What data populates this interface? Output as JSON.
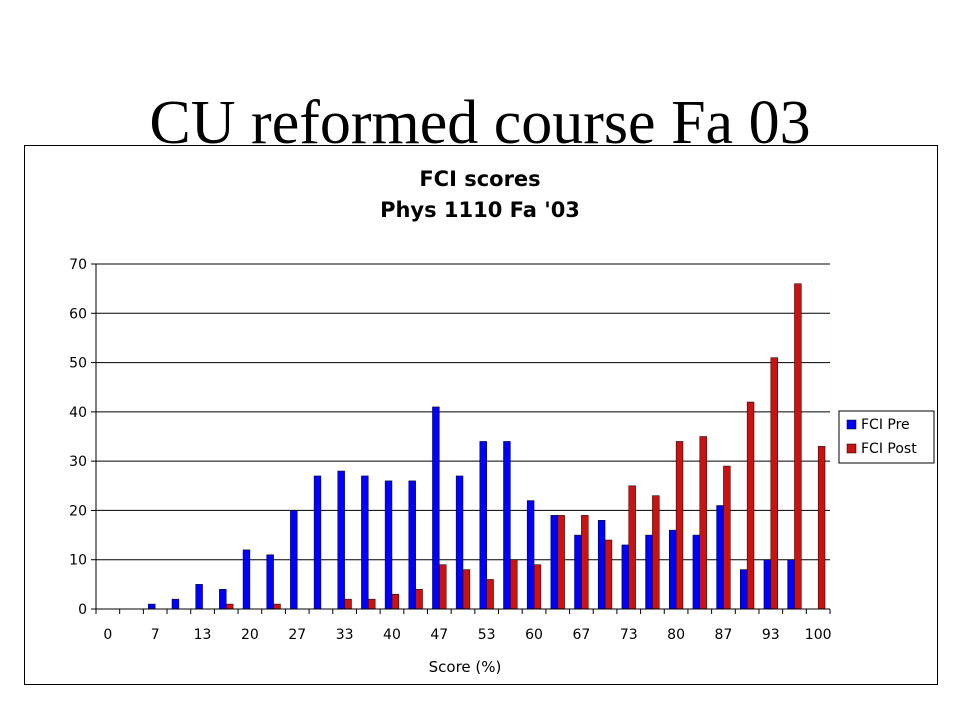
{
  "slide": {
    "title": "CU reformed course Fa 03"
  },
  "colors": {
    "pre": "#0000FF",
    "post": "#CC1111",
    "grid": "#000000"
  },
  "chart_data": {
    "type": "bar",
    "title": "FCI scores",
    "subtitle": "Phys 1110 Fa '03",
    "xlabel": "Score (%)",
    "ylabel": "",
    "ylim": [
      0,
      70
    ],
    "yticks": [
      0,
      10,
      20,
      30,
      40,
      50,
      60,
      70
    ],
    "grid": true,
    "legend_position": "right",
    "categories": [
      "0",
      "3",
      "7",
      "10",
      "13",
      "17",
      "20",
      "23",
      "27",
      "30",
      "33",
      "37",
      "40",
      "43",
      "47",
      "50",
      "53",
      "57",
      "60",
      "63",
      "67",
      "70",
      "73",
      "77",
      "80",
      "83",
      "87",
      "90",
      "93",
      "97",
      "100"
    ],
    "x_tick_labels": [
      "0",
      "7",
      "13",
      "20",
      "27",
      "33",
      "40",
      "47",
      "53",
      "60",
      "67",
      "73",
      "80",
      "87",
      "93",
      "100"
    ],
    "series": [
      {
        "name": "FCI Pre",
        "values": [
          0,
          0,
          1,
          2,
          5,
          4,
          12,
          11,
          20,
          27,
          28,
          27,
          26,
          26,
          41,
          27,
          34,
          34,
          22,
          19,
          15,
          18,
          13,
          15,
          16,
          15,
          21,
          8,
          10,
          10,
          0
        ]
      },
      {
        "name": "FCI Post",
        "values": [
          0,
          0,
          0,
          0,
          0,
          1,
          0,
          1,
          0,
          0,
          2,
          2,
          3,
          4,
          9,
          8,
          6,
          10,
          9,
          19,
          19,
          14,
          25,
          23,
          34,
          35,
          29,
          42,
          51,
          66,
          33
        ]
      }
    ]
  }
}
